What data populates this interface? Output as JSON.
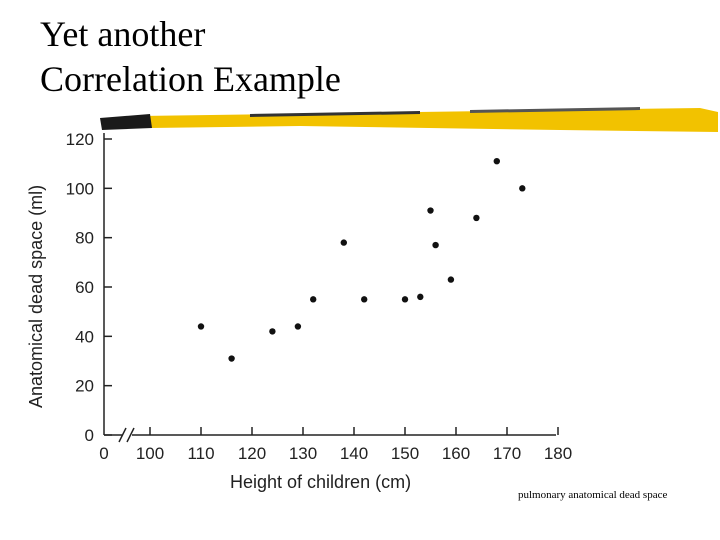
{
  "slide": {
    "title_line1": "Yet another",
    "title_line2": "Correlation Example",
    "caption": "pulmonary anatomical dead space",
    "accent_color": "#f2c200"
  },
  "chart_data": {
    "type": "scatter",
    "title": "",
    "xlabel": "Height of children (cm)",
    "ylabel": "Anatomical dead space (ml)",
    "xlim": [
      100,
      180
    ],
    "ylim": [
      0,
      120
    ],
    "x_ticks": [
      100,
      110,
      120,
      130,
      140,
      150,
      160,
      170,
      180
    ],
    "x_tick_labels": [
      "0",
      "100",
      "110",
      "120",
      "130",
      "140",
      "150",
      "160",
      "170",
      "180"
    ],
    "y_ticks": [
      0,
      20,
      40,
      60,
      80,
      100,
      120
    ],
    "axis_break": true,
    "grid": false,
    "points": [
      {
        "x": 110,
        "y": 44
      },
      {
        "x": 116,
        "y": 31
      },
      {
        "x": 124,
        "y": 42
      },
      {
        "x": 129,
        "y": 44
      },
      {
        "x": 132,
        "y": 55
      },
      {
        "x": 138,
        "y": 78
      },
      {
        "x": 142,
        "y": 55
      },
      {
        "x": 150,
        "y": 55
      },
      {
        "x": 153,
        "y": 56
      },
      {
        "x": 155,
        "y": 91
      },
      {
        "x": 156,
        "y": 77
      },
      {
        "x": 159,
        "y": 63
      },
      {
        "x": 164,
        "y": 88
      },
      {
        "x": 168,
        "y": 111
      },
      {
        "x": 173,
        "y": 100
      }
    ]
  }
}
